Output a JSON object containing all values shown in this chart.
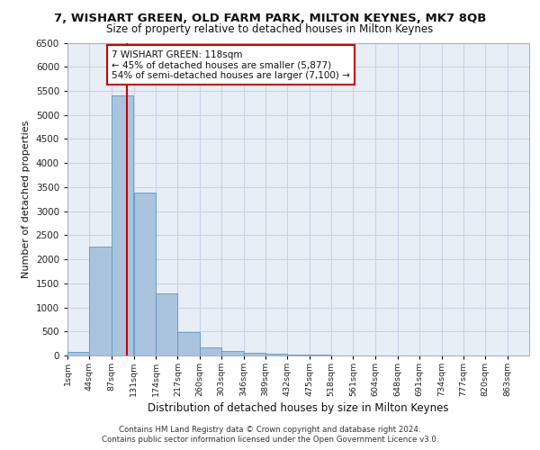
{
  "title1": "7, WISHART GREEN, OLD FARM PARK, MILTON KEYNES, MK7 8QB",
  "title2": "Size of property relative to detached houses in Milton Keynes",
  "xlabel": "Distribution of detached houses by size in Milton Keynes",
  "ylabel": "Number of detached properties",
  "bin_labels": [
    "1sqm",
    "44sqm",
    "87sqm",
    "131sqm",
    "174sqm",
    "217sqm",
    "260sqm",
    "303sqm",
    "346sqm",
    "389sqm",
    "432sqm",
    "475sqm",
    "518sqm",
    "561sqm",
    "604sqm",
    "648sqm",
    "691sqm",
    "734sqm",
    "777sqm",
    "820sqm",
    "863sqm"
  ],
  "bin_edges": [
    1,
    44,
    87,
    131,
    174,
    217,
    260,
    303,
    346,
    389,
    432,
    475,
    518,
    561,
    604,
    648,
    691,
    734,
    777,
    820,
    863
  ],
  "bar_heights": [
    75,
    2270,
    5400,
    3380,
    1300,
    480,
    160,
    85,
    65,
    40,
    20,
    10,
    5,
    5,
    3,
    2,
    1,
    1,
    0,
    0,
    0
  ],
  "bar_color": "#aac4de",
  "bar_edge_color": "#5a9ac5",
  "grid_color": "#c8d4e8",
  "background_color": "#e8eef6",
  "vline_x": 118,
  "vline_color": "#cc0000",
  "annotation_text": "7 WISHART GREEN: 118sqm\n← 45% of detached houses are smaller (5,877)\n54% of semi-detached houses are larger (7,100) →",
  "annotation_box_color": "#ffffff",
  "annotation_box_edge": "#cc0000",
  "footer1": "Contains HM Land Registry data © Crown copyright and database right 2024.",
  "footer2": "Contains public sector information licensed under the Open Government Licence v3.0.",
  "ylim": [
    0,
    6500
  ],
  "yticks": [
    0,
    500,
    1000,
    1500,
    2000,
    2500,
    3000,
    3500,
    4000,
    4500,
    5000,
    5500,
    6000,
    6500
  ]
}
